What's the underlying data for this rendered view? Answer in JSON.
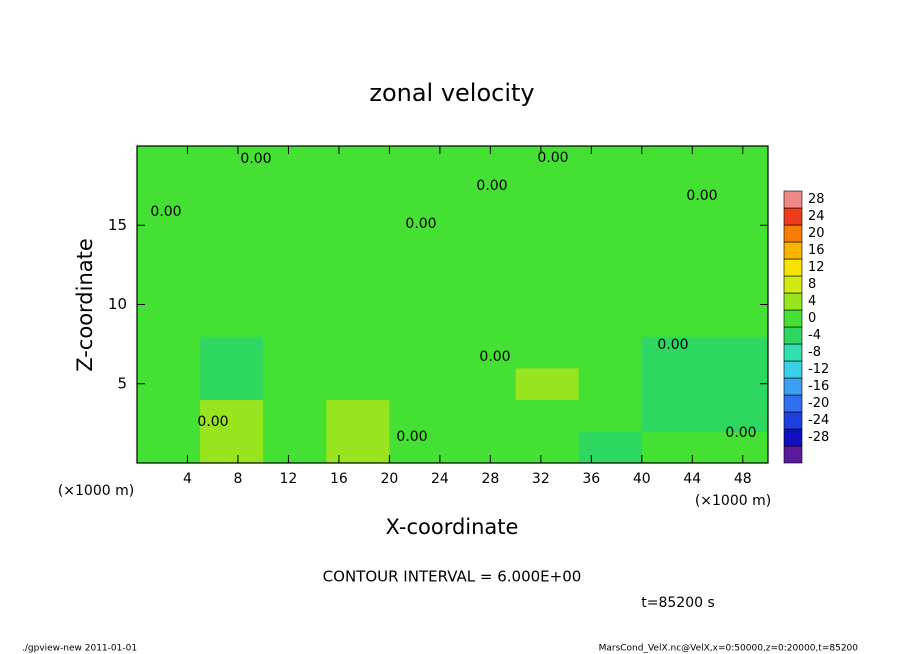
{
  "chart_data": {
    "type": "contour",
    "title": "zonal velocity",
    "x_label": "X-coordinate",
    "y_label": "Z-coordinate",
    "x_unit": "(×1000 m)",
    "x_unit_right": "(×1000 m)",
    "contour_interval": "CONTOUR INTERVAL = 6.000E+00",
    "time_label": "t=85200 s",
    "footer_left": "./gpview-new   2011-01-01",
    "footer_right": "MarsCond_VelX.nc@VelX,x=0:50000,z=0:20000,t=85200",
    "xlim": [
      0,
      50
    ],
    "xticks": [
      4,
      8,
      12,
      16,
      20,
      24,
      28,
      32,
      36,
      40,
      44,
      48
    ],
    "ylim": [
      0,
      20
    ],
    "yticks": [
      5,
      10,
      15
    ],
    "x": [
      2.5,
      7.5,
      12.5,
      17.5,
      22.5,
      27.5,
      32.5,
      37.5,
      42.5,
      47.5
    ],
    "z": [
      1,
      3,
      5,
      7,
      9,
      11,
      13,
      15,
      17,
      19
    ],
    "values": [
      [
        2,
        6,
        3,
        4,
        1,
        1,
        0,
        -3,
        1,
        0
      ],
      [
        1,
        4,
        3,
        5,
        2,
        1,
        3,
        2,
        -1,
        -3
      ],
      [
        0,
        -3,
        2,
        2,
        2,
        1,
        4,
        1,
        -1,
        -2
      ],
      [
        0,
        -1,
        1,
        1,
        1,
        0,
        1,
        0,
        -1,
        -1
      ],
      [
        1,
        1,
        1,
        1,
        1,
        1,
        0,
        1,
        1,
        0
      ],
      [
        1,
        1,
        1,
        1,
        1,
        1,
        1,
        1,
        1,
        1
      ],
      [
        1,
        1,
        1,
        1,
        1,
        1,
        1,
        1,
        1,
        1
      ],
      [
        0,
        1,
        1,
        1,
        1,
        1,
        1,
        1,
        1,
        1
      ],
      [
        1,
        1,
        1,
        1,
        1,
        1,
        1,
        0,
        1,
        1
      ],
      [
        1,
        1,
        0,
        1,
        1,
        1,
        1,
        1,
        1,
        1
      ]
    ],
    "colorbar_levels": [
      -28,
      -24,
      -20,
      -16,
      -12,
      -8,
      -4,
      0,
      4,
      8,
      12,
      16,
      20,
      24,
      28
    ],
    "colors": [
      "#5a1a9a",
      "#1010c0",
      "#1f3fe0",
      "#2f6ff0",
      "#3ca0f0",
      "#3ad0e8",
      "#30e0b0",
      "#2ed860",
      "#44e034",
      "#98e41e",
      "#d0ea14",
      "#f4e400",
      "#f8b400",
      "#f87c00",
      "#f03c1c",
      "#f08888"
    ],
    "contour_labels": [
      "0.00",
      "0.00",
      "0.00",
      "0.00",
      "0.00",
      "0.00",
      "0.00",
      "0.00",
      "0.00",
      "0.00",
      "0.00"
    ]
  }
}
